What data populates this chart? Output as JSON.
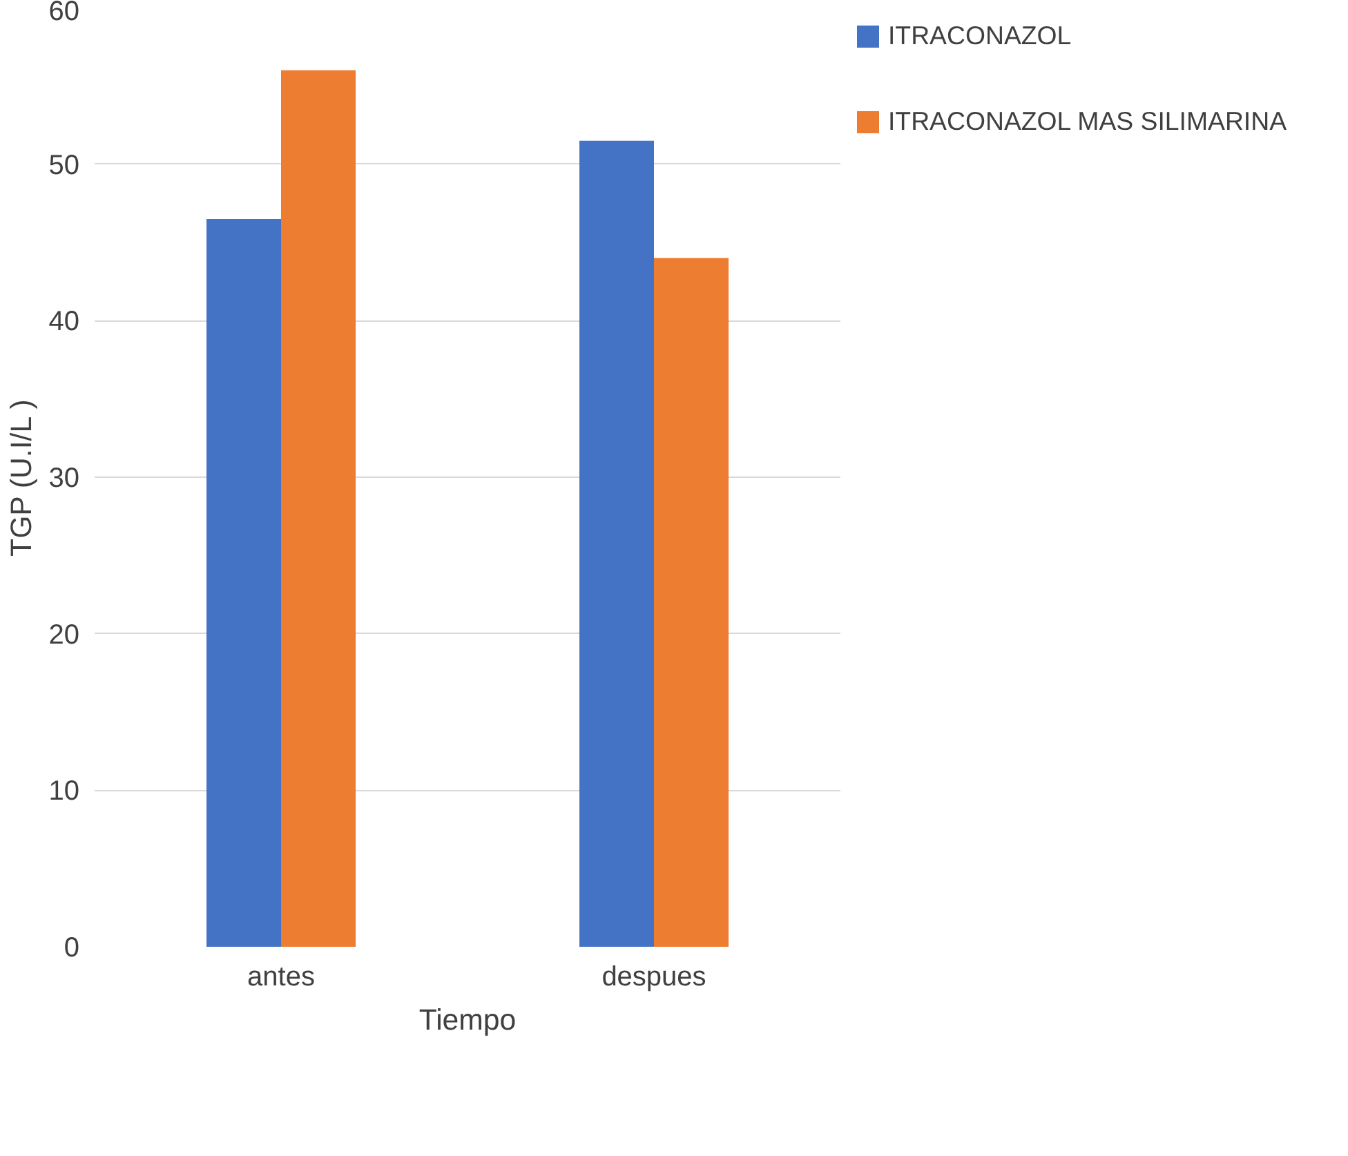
{
  "chart_data": {
    "type": "bar",
    "xlabel": "Tiempo",
    "ylabel": "TGP (U.I/L )",
    "categories": [
      "antes",
      "despues"
    ],
    "series": [
      {
        "name": "ITRACONAZOL",
        "color": "#4472c4",
        "values": [
          46.5,
          51.5
        ]
      },
      {
        "name": "ITRACONAZOL MAS SILIMARINA",
        "color": "#ed7d31",
        "values": [
          56,
          44
        ]
      }
    ],
    "ylim": [
      0,
      60
    ],
    "yticks": [
      0,
      10,
      20,
      30,
      40,
      50,
      60
    ],
    "grid": "y",
    "legend": "top right"
  }
}
